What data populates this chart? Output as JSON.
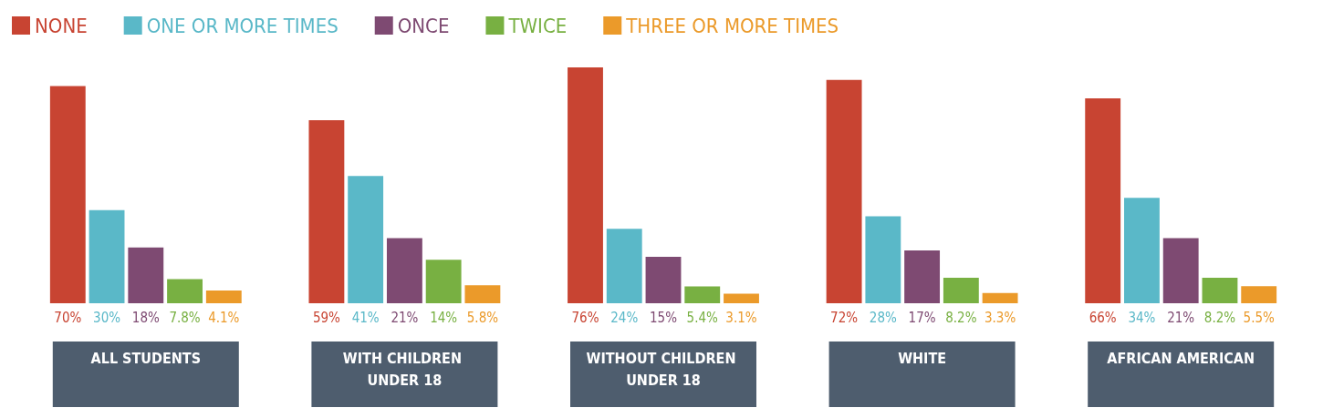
{
  "chart_data": {
    "type": "bar",
    "categories": [
      "ALL STUDENTS",
      "WITH CHILDREN UNDER 18",
      "WITHOUT CHILDREN UNDER 18",
      "WHITE",
      "AFRICAN AMERICAN"
    ],
    "series": [
      {
        "name": "NONE",
        "color": "#c84432",
        "values": [
          70,
          59,
          76,
          72,
          66
        ],
        "value_labels": [
          "70%",
          "59%",
          "76%",
          "72%",
          "66%"
        ]
      },
      {
        "name": "ONE OR MORE TIMES",
        "color": "#5ab8c8",
        "values": [
          30,
          41,
          24,
          28,
          34
        ],
        "value_labels": [
          "30%",
          "41%",
          "24%",
          "28%",
          "34%"
        ]
      },
      {
        "name": "ONCE",
        "color": "#7e4a72",
        "values": [
          18,
          21,
          15,
          17,
          21
        ],
        "value_labels": [
          "18%",
          "21%",
          "15%",
          "17%",
          "21%"
        ]
      },
      {
        "name": "TWICE",
        "color": "#78b042",
        "values": [
          7.8,
          14,
          5.4,
          8.2,
          8.2
        ],
        "value_labels": [
          "7.8%",
          "14%",
          "5.4%",
          "8.2%",
          "8.2%"
        ]
      },
      {
        "name": "THREE OR MORE TIMES",
        "color": "#eb9a2a",
        "values": [
          4.1,
          5.8,
          3.1,
          3.3,
          5.5
        ],
        "value_labels": [
          "4.1%",
          "5.8%",
          "3.1%",
          "3.3%",
          "5.5%"
        ]
      }
    ],
    "legend": "top left",
    "grid": false
  }
}
